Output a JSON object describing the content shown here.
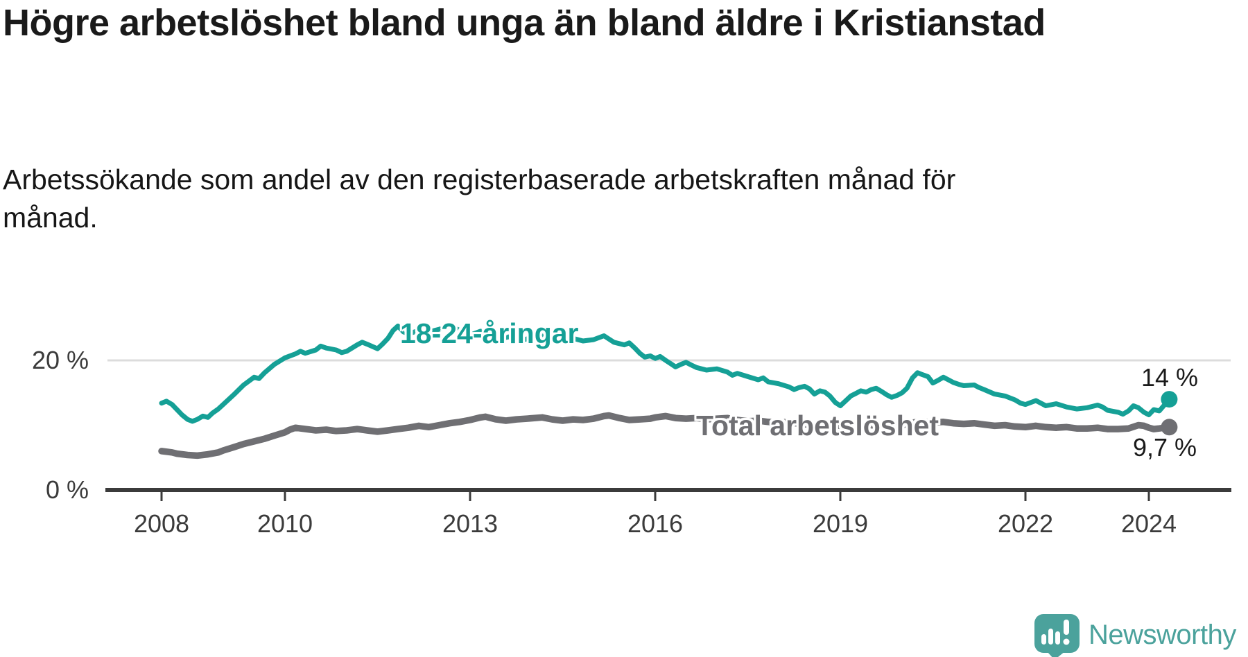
{
  "header": {
    "title": "Högre arbetslöshet bland unga än bland äldre i Kristianstad",
    "subtitle": "Arbetssökande som andel av den registerbaserade arbetskraften månad för månad."
  },
  "chart": {
    "y_ticks": [
      "20 %",
      "0 %"
    ],
    "x_ticks": [
      "2008",
      "2010",
      "2013",
      "2016",
      "2019",
      "2022",
      "2024"
    ],
    "x_tick_years": [
      2008,
      2010,
      2013,
      2016,
      2019,
      2022,
      2024
    ],
    "series_labels": {
      "young": "18-24-åringar",
      "total": "Total arbetslöshet"
    },
    "end_labels": {
      "young": "14 %",
      "total": "9,7 %"
    },
    "colors": {
      "young": "#15a096",
      "total": "#6f6f73",
      "axis": "#3b3b3b",
      "grid": "#dcdcdc",
      "text": "#1a1a1a",
      "brand": "#4ba29c"
    }
  },
  "chart_data": {
    "type": "line",
    "title": "Högre arbetslöshet bland unga än bland äldre i Kristianstad",
    "subtitle": "Arbetssökande som andel av den registerbaserade arbetskraften månad för månad.",
    "x_unit": "decimal_year",
    "y_unit": "percent",
    "xlim": [
      2008,
      2025.2
    ],
    "ylim": [
      0,
      27
    ],
    "grid": "single horizontal gridline at 20 %",
    "legend": "inline labels on lines",
    "annotations": [
      {
        "series": "18-24-åringar",
        "text": "14 %",
        "x": 2024.33,
        "y": 14.0
      },
      {
        "series": "Total arbetslöshet",
        "text": "9,7 %",
        "x": 2024.33,
        "y": 9.7
      }
    ],
    "series": [
      {
        "id": "young",
        "name": "18-24-åringar",
        "color": "#15a096",
        "stroke_width": 7,
        "points": [
          [
            2008.0,
            13.4
          ],
          [
            2008.08,
            13.7
          ],
          [
            2008.17,
            13.2
          ],
          [
            2008.25,
            12.4
          ],
          [
            2008.33,
            11.6
          ],
          [
            2008.42,
            10.9
          ],
          [
            2008.5,
            10.6
          ],
          [
            2008.58,
            10.9
          ],
          [
            2008.67,
            11.4
          ],
          [
            2008.75,
            11.2
          ],
          [
            2008.83,
            11.9
          ],
          [
            2008.92,
            12.5
          ],
          [
            2009.0,
            13.2
          ],
          [
            2009.17,
            14.7
          ],
          [
            2009.33,
            16.2
          ],
          [
            2009.5,
            17.4
          ],
          [
            2009.58,
            17.2
          ],
          [
            2009.67,
            18.1
          ],
          [
            2009.83,
            19.4
          ],
          [
            2010.0,
            20.4
          ],
          [
            2010.17,
            21.0
          ],
          [
            2010.25,
            21.4
          ],
          [
            2010.33,
            21.1
          ],
          [
            2010.5,
            21.6
          ],
          [
            2010.58,
            22.2
          ],
          [
            2010.67,
            21.9
          ],
          [
            2010.83,
            21.6
          ],
          [
            2010.92,
            21.2
          ],
          [
            2011.0,
            21.4
          ],
          [
            2011.17,
            22.4
          ],
          [
            2011.25,
            22.8
          ],
          [
            2011.33,
            22.5
          ],
          [
            2011.5,
            21.8
          ],
          [
            2011.58,
            22.5
          ],
          [
            2011.67,
            23.4
          ],
          [
            2011.75,
            24.6
          ],
          [
            2011.83,
            25.3
          ],
          [
            2011.92,
            24.4
          ],
          [
            2012.0,
            24.1
          ],
          [
            2012.17,
            24.6
          ],
          [
            2012.25,
            25.0
          ],
          [
            2012.33,
            24.4
          ],
          [
            2012.5,
            24.8
          ],
          [
            2012.67,
            25.4
          ],
          [
            2012.75,
            25.0
          ],
          [
            2012.92,
            24.2
          ],
          [
            2013.0,
            23.9
          ],
          [
            2013.17,
            24.5
          ],
          [
            2013.33,
            23.9
          ],
          [
            2013.5,
            23.4
          ],
          [
            2013.67,
            23.7
          ],
          [
            2013.83,
            23.1
          ],
          [
            2014.0,
            23.5
          ],
          [
            2014.17,
            23.9
          ],
          [
            2014.33,
            23.2
          ],
          [
            2014.5,
            22.9
          ],
          [
            2014.67,
            23.4
          ],
          [
            2014.83,
            23.0
          ],
          [
            2015.0,
            23.2
          ],
          [
            2015.17,
            23.8
          ],
          [
            2015.33,
            22.8
          ],
          [
            2015.5,
            22.4
          ],
          [
            2015.58,
            22.7
          ],
          [
            2015.67,
            21.9
          ],
          [
            2015.75,
            21.1
          ],
          [
            2015.83,
            20.5
          ],
          [
            2015.92,
            20.7
          ],
          [
            2016.0,
            20.3
          ],
          [
            2016.08,
            20.6
          ],
          [
            2016.17,
            20.0
          ],
          [
            2016.25,
            19.5
          ],
          [
            2016.33,
            19.0
          ],
          [
            2016.42,
            19.4
          ],
          [
            2016.5,
            19.7
          ],
          [
            2016.58,
            19.3
          ],
          [
            2016.67,
            18.9
          ],
          [
            2016.83,
            18.5
          ],
          [
            2017.0,
            18.7
          ],
          [
            2017.17,
            18.2
          ],
          [
            2017.25,
            17.7
          ],
          [
            2017.33,
            18.0
          ],
          [
            2017.5,
            17.5
          ],
          [
            2017.67,
            17.0
          ],
          [
            2017.75,
            17.3
          ],
          [
            2017.83,
            16.7
          ],
          [
            2018.0,
            16.4
          ],
          [
            2018.17,
            15.9
          ],
          [
            2018.25,
            15.5
          ],
          [
            2018.33,
            15.8
          ],
          [
            2018.42,
            16.0
          ],
          [
            2018.5,
            15.6
          ],
          [
            2018.58,
            14.8
          ],
          [
            2018.67,
            15.3
          ],
          [
            2018.75,
            15.1
          ],
          [
            2018.83,
            14.5
          ],
          [
            2018.92,
            13.5
          ],
          [
            2019.0,
            13.0
          ],
          [
            2019.08,
            13.7
          ],
          [
            2019.17,
            14.5
          ],
          [
            2019.25,
            14.9
          ],
          [
            2019.33,
            15.3
          ],
          [
            2019.42,
            15.1
          ],
          [
            2019.5,
            15.5
          ],
          [
            2019.58,
            15.7
          ],
          [
            2019.67,
            15.2
          ],
          [
            2019.75,
            14.7
          ],
          [
            2019.83,
            14.3
          ],
          [
            2019.92,
            14.6
          ],
          [
            2020.0,
            15.0
          ],
          [
            2020.08,
            15.7
          ],
          [
            2020.17,
            17.3
          ],
          [
            2020.25,
            18.1
          ],
          [
            2020.33,
            17.8
          ],
          [
            2020.42,
            17.5
          ],
          [
            2020.5,
            16.5
          ],
          [
            2020.58,
            16.9
          ],
          [
            2020.67,
            17.4
          ],
          [
            2020.75,
            17.0
          ],
          [
            2020.83,
            16.6
          ],
          [
            2020.92,
            16.3
          ],
          [
            2021.0,
            16.1
          ],
          [
            2021.17,
            16.2
          ],
          [
            2021.25,
            15.8
          ],
          [
            2021.33,
            15.5
          ],
          [
            2021.5,
            14.8
          ],
          [
            2021.67,
            14.5
          ],
          [
            2021.83,
            13.9
          ],
          [
            2021.92,
            13.4
          ],
          [
            2022.0,
            13.2
          ],
          [
            2022.17,
            13.8
          ],
          [
            2022.25,
            13.4
          ],
          [
            2022.33,
            13.0
          ],
          [
            2022.5,
            13.3
          ],
          [
            2022.67,
            12.8
          ],
          [
            2022.83,
            12.5
          ],
          [
            2023.0,
            12.7
          ],
          [
            2023.17,
            13.1
          ],
          [
            2023.25,
            12.8
          ],
          [
            2023.33,
            12.3
          ],
          [
            2023.5,
            12.0
          ],
          [
            2023.58,
            11.7
          ],
          [
            2023.67,
            12.2
          ],
          [
            2023.75,
            13.0
          ],
          [
            2023.83,
            12.7
          ],
          [
            2023.92,
            12.0
          ],
          [
            2024.0,
            11.6
          ],
          [
            2024.08,
            12.4
          ],
          [
            2024.17,
            12.2
          ],
          [
            2024.25,
            13.1
          ],
          [
            2024.33,
            14.0
          ]
        ]
      },
      {
        "id": "total",
        "name": "Total arbetslöshet",
        "color": "#6f6f73",
        "stroke_width": 9.5,
        "points": [
          [
            2008.0,
            6.0
          ],
          [
            2008.17,
            5.8
          ],
          [
            2008.25,
            5.6
          ],
          [
            2008.42,
            5.4
          ],
          [
            2008.58,
            5.3
          ],
          [
            2008.75,
            5.5
          ],
          [
            2008.92,
            5.8
          ],
          [
            2009.0,
            6.1
          ],
          [
            2009.17,
            6.6
          ],
          [
            2009.33,
            7.1
          ],
          [
            2009.5,
            7.5
          ],
          [
            2009.67,
            7.9
          ],
          [
            2009.83,
            8.4
          ],
          [
            2010.0,
            8.9
          ],
          [
            2010.08,
            9.3
          ],
          [
            2010.17,
            9.6
          ],
          [
            2010.33,
            9.4
          ],
          [
            2010.5,
            9.2
          ],
          [
            2010.67,
            9.3
          ],
          [
            2010.83,
            9.1
          ],
          [
            2011.0,
            9.2
          ],
          [
            2011.17,
            9.4
          ],
          [
            2011.33,
            9.2
          ],
          [
            2011.5,
            9.0
          ],
          [
            2011.67,
            9.2
          ],
          [
            2011.83,
            9.4
          ],
          [
            2012.0,
            9.6
          ],
          [
            2012.17,
            9.9
          ],
          [
            2012.33,
            9.7
          ],
          [
            2012.5,
            10.0
          ],
          [
            2012.67,
            10.3
          ],
          [
            2012.83,
            10.5
          ],
          [
            2013.0,
            10.8
          ],
          [
            2013.17,
            11.2
          ],
          [
            2013.25,
            11.3
          ],
          [
            2013.42,
            10.9
          ],
          [
            2013.58,
            10.7
          ],
          [
            2013.75,
            10.9
          ],
          [
            2013.92,
            11.0
          ],
          [
            2014.17,
            11.2
          ],
          [
            2014.33,
            10.9
          ],
          [
            2014.5,
            10.7
          ],
          [
            2014.67,
            10.9
          ],
          [
            2014.83,
            10.8
          ],
          [
            2015.0,
            11.0
          ],
          [
            2015.17,
            11.4
          ],
          [
            2015.25,
            11.5
          ],
          [
            2015.42,
            11.1
          ],
          [
            2015.58,
            10.8
          ],
          [
            2015.75,
            10.9
          ],
          [
            2015.92,
            11.0
          ],
          [
            2016.0,
            11.2
          ],
          [
            2016.17,
            11.4
          ],
          [
            2016.33,
            11.1
          ],
          [
            2016.5,
            11.0
          ],
          [
            2016.67,
            11.1
          ],
          [
            2016.83,
            10.9
          ],
          [
            2017.0,
            11.0
          ],
          [
            2017.17,
            11.1
          ],
          [
            2017.33,
            10.8
          ],
          [
            2017.5,
            10.6
          ],
          [
            2017.67,
            10.7
          ],
          [
            2017.83,
            10.5
          ],
          [
            2018.0,
            10.4
          ],
          [
            2018.17,
            10.5
          ],
          [
            2018.33,
            10.2
          ],
          [
            2018.5,
            10.1
          ],
          [
            2018.67,
            10.2
          ],
          [
            2018.83,
            10.0
          ],
          [
            2019.0,
            9.9
          ],
          [
            2019.17,
            10.1
          ],
          [
            2019.33,
            9.9
          ],
          [
            2019.5,
            10.0
          ],
          [
            2019.67,
            9.8
          ],
          [
            2019.83,
            9.9
          ],
          [
            2020.0,
            10.0
          ],
          [
            2020.17,
            10.4
          ],
          [
            2020.33,
            10.6
          ],
          [
            2020.5,
            10.4
          ],
          [
            2020.67,
            10.5
          ],
          [
            2020.83,
            10.3
          ],
          [
            2021.0,
            10.2
          ],
          [
            2021.17,
            10.3
          ],
          [
            2021.33,
            10.1
          ],
          [
            2021.5,
            9.9
          ],
          [
            2021.67,
            10.0
          ],
          [
            2021.83,
            9.8
          ],
          [
            2022.0,
            9.7
          ],
          [
            2022.17,
            9.9
          ],
          [
            2022.33,
            9.7
          ],
          [
            2022.5,
            9.6
          ],
          [
            2022.67,
            9.7
          ],
          [
            2022.83,
            9.5
          ],
          [
            2023.0,
            9.5
          ],
          [
            2023.17,
            9.6
          ],
          [
            2023.33,
            9.4
          ],
          [
            2023.5,
            9.4
          ],
          [
            2023.67,
            9.5
          ],
          [
            2023.83,
            10.0
          ],
          [
            2023.92,
            9.9
          ],
          [
            2024.0,
            9.6
          ],
          [
            2024.08,
            9.4
          ],
          [
            2024.17,
            9.5
          ],
          [
            2024.25,
            9.6
          ],
          [
            2024.33,
            9.7
          ]
        ]
      }
    ]
  },
  "footer": {
    "brand": "Newsworthy"
  }
}
